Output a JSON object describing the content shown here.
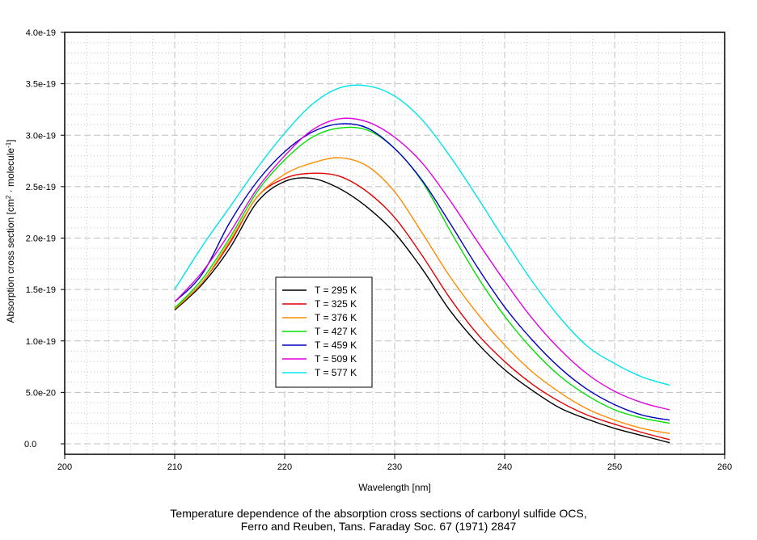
{
  "chart_data": {
    "type": "line",
    "title": "",
    "caption_lines": [
      "Temperature dependence of the absorption cross sections of carbonyl sulfide OCS,",
      "Ferro and Reuben, Tans. Faraday Soc. 67 (1971) 2847"
    ],
    "xlabel": "Wavelength [nm]",
    "ylabel_parts": {
      "main": "Absorption cross section [cm",
      "sup1": "2",
      "mid": " · molecule",
      "sup2": "-1",
      "end": "]"
    },
    "xlim": [
      200,
      260
    ],
    "ylim": [
      0,
      4e-19
    ],
    "x_ticks": [
      200,
      210,
      220,
      230,
      240,
      250,
      260
    ],
    "x_tick_labels": [
      "200",
      "210",
      "220",
      "230",
      "240",
      "250",
      "260"
    ],
    "y_ticks": [
      0,
      5e-20,
      1e-19,
      1.5e-19,
      2e-19,
      2.5e-19,
      3e-19,
      3.5e-19,
      4e-19
    ],
    "y_tick_labels": [
      "0.0",
      "5.0e-20",
      "1.0e-19",
      "1.5e-19",
      "2.0e-19",
      "2.5e-19",
      "3.0e-19",
      "3.5e-19",
      "4.0e-19"
    ],
    "grid": true,
    "legend_position": "center-left",
    "x": [
      210,
      212.5,
      215,
      217.5,
      220,
      222.5,
      225,
      227.5,
      230,
      232.5,
      235,
      237.5,
      240,
      242.5,
      245,
      247.5,
      250,
      252.5,
      255
    ],
    "series": [
      {
        "name": "T = 295 K",
        "color": "#000000",
        "values": [
          1.3e-19,
          1.55e-19,
          1.9e-19,
          2.35e-19,
          2.55e-19,
          2.58e-19,
          2.48e-19,
          2.3e-19,
          2.05e-19,
          1.7e-19,
          1.3e-19,
          9.8e-20,
          7.2e-20,
          5.2e-20,
          3.5e-20,
          2.4e-20,
          1.5e-20,
          8e-21,
          1e-21
        ]
      },
      {
        "name": "T = 325 K",
        "color": "#e00000",
        "values": [
          1.31e-19,
          1.57e-19,
          1.95e-19,
          2.4e-19,
          2.58e-19,
          2.63e-19,
          2.6e-19,
          2.45e-19,
          2.2e-19,
          1.83e-19,
          1.42e-19,
          1.07e-19,
          8e-20,
          5.8e-20,
          4.1e-20,
          2.8e-20,
          1.9e-20,
          1.1e-20,
          4e-21
        ]
      },
      {
        "name": "T = 376 K",
        "color": "#ff8c00",
        "values": [
          1.31e-19,
          1.57e-19,
          1.97e-19,
          2.4e-19,
          2.62e-19,
          2.73e-19,
          2.78e-19,
          2.7e-19,
          2.45e-19,
          2.05e-19,
          1.63e-19,
          1.27e-19,
          9.6e-20,
          7e-20,
          5e-20,
          3.4e-20,
          2.3e-20,
          1.5e-20,
          1e-20
        ]
      },
      {
        "name": "T = 427 K",
        "color": "#00e000",
        "values": [
          1.32e-19,
          1.6e-19,
          2e-19,
          2.45e-19,
          2.76e-19,
          2.98e-19,
          3.07e-19,
          3.05e-19,
          2.87e-19,
          2.55e-19,
          2.08e-19,
          1.63e-19,
          1.24e-19,
          9.2e-20,
          6.6e-20,
          4.7e-20,
          3.3e-20,
          2.5e-20,
          2e-20
        ]
      },
      {
        "name": "T = 459 K",
        "color": "#0000c0",
        "values": [
          1.38e-19,
          1.65e-19,
          2.15e-19,
          2.55e-19,
          2.84e-19,
          3.03e-19,
          3.11e-19,
          3.07e-19,
          2.87e-19,
          2.56e-19,
          2.15e-19,
          1.72e-19,
          1.33e-19,
          1.01e-19,
          7.4e-20,
          5.3e-20,
          3.8e-20,
          2.8e-20,
          2.3e-20
        ]
      },
      {
        "name": "T = 509 K",
        "color": "#e000e0",
        "values": [
          1.38e-19,
          1.67e-19,
          2.05e-19,
          2.48e-19,
          2.8e-19,
          3.05e-19,
          3.16e-19,
          3.13e-19,
          2.98e-19,
          2.73e-19,
          2.37e-19,
          1.97e-19,
          1.58e-19,
          1.22e-19,
          9.2e-20,
          6.8e-20,
          5.1e-20,
          4e-20,
          3.3e-20
        ]
      },
      {
        "name": "T = 577 K",
        "color": "#00e5ee",
        "values": [
          1.5e-19,
          1.92e-19,
          2.3e-19,
          2.68e-19,
          3.02e-19,
          3.3e-19,
          3.46e-19,
          3.48e-19,
          3.38e-19,
          3.15e-19,
          2.8e-19,
          2.4e-19,
          1.98e-19,
          1.58e-19,
          1.23e-19,
          9.5e-20,
          7.8e-20,
          6.5e-20,
          5.7e-20
        ]
      }
    ]
  }
}
